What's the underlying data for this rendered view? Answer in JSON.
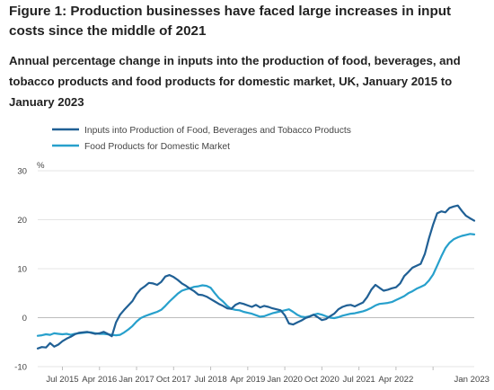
{
  "header": {
    "title": "Figure 1: Production businesses have faced large increases in input costs since the middle of 2021",
    "subtitle": "Annual percentage change in inputs into the production of food, beverages, and tobacco products and food products for domestic market, UK, January 2015 to January 2023"
  },
  "chart_data": {
    "type": "line",
    "title": "Figure 1: Production businesses have faced large increases in input costs since the middle of 2021",
    "subtitle": "Annual percentage change in inputs into the production of food, beverages, and tobacco products and food products for domestic market, UK, January 2015 to January 2023",
    "ylabel": "%",
    "xlabel": "",
    "ylim": [
      -10,
      30
    ],
    "yticks": [
      -10,
      0,
      10,
      20,
      30
    ],
    "xtick_labels": [
      "Jul 2015",
      "Apr 2016",
      "Jan 2017",
      "Oct 2017",
      "Jul 2018",
      "Apr 2019",
      "Jan 2020",
      "Oct 2020",
      "Jul 2021",
      "Apr 2022",
      "Jan 2023"
    ],
    "x_start": "Jan 2015",
    "x_end": "Jan 2023",
    "grid": "horizontal",
    "legend_position": "top-left",
    "series": [
      {
        "name": "Inputs into Production of Food, Beverages and Tobacco Products",
        "color": "#206095",
        "values": [
          -6.3,
          -6.0,
          -6.1,
          -5.2,
          -5.9,
          -5.5,
          -4.8,
          -4.3,
          -3.9,
          -3.4,
          -3.1,
          -3.0,
          -2.9,
          -3.1,
          -3.3,
          -3.2,
          -2.9,
          -3.3,
          -3.8,
          -1.0,
          0.6,
          1.6,
          2.5,
          3.4,
          4.8,
          5.8,
          6.4,
          7.1,
          7.0,
          6.7,
          7.3,
          8.4,
          8.7,
          8.3,
          7.7,
          7.0,
          6.5,
          5.9,
          5.4,
          4.7,
          4.6,
          4.3,
          3.8,
          3.3,
          2.8,
          2.4,
          1.9,
          1.8,
          2.6,
          3.0,
          2.8,
          2.5,
          2.2,
          2.6,
          2.1,
          2.4,
          2.2,
          1.9,
          1.7,
          1.5,
          0.5,
          -1.2,
          -1.4,
          -1.0,
          -0.6,
          -0.1,
          0.2,
          0.6,
          0.1,
          -0.5,
          -0.3,
          0.3,
          0.8,
          1.7,
          2.2,
          2.5,
          2.6,
          2.3,
          2.7,
          3.1,
          4.2,
          5.7,
          6.7,
          6.1,
          5.5,
          5.7,
          6.0,
          6.2,
          7.0,
          8.5,
          9.3,
          10.2,
          10.6,
          11.0,
          13.0,
          16.2,
          19.0,
          21.3,
          21.7,
          21.5,
          22.4,
          22.7,
          22.9,
          21.8,
          20.8,
          20.3,
          19.8
        ]
      },
      {
        "name": "Food Products for Domestic Market",
        "color": "#27a0cc",
        "values": [
          -3.7,
          -3.6,
          -3.4,
          -3.5,
          -3.2,
          -3.3,
          -3.4,
          -3.3,
          -3.5,
          -3.3,
          -3.2,
          -3.1,
          -3.0,
          -3.0,
          -3.2,
          -3.3,
          -3.3,
          -3.4,
          -3.5,
          -3.6,
          -3.5,
          -3.0,
          -2.4,
          -1.7,
          -0.8,
          -0.1,
          0.3,
          0.6,
          0.9,
          1.2,
          1.6,
          2.4,
          3.3,
          4.1,
          4.9,
          5.5,
          5.8,
          6.0,
          6.3,
          6.4,
          6.6,
          6.5,
          6.1,
          5.0,
          4.0,
          3.3,
          2.4,
          1.8,
          1.6,
          1.5,
          1.2,
          1.0,
          0.8,
          0.5,
          0.2,
          0.3,
          0.6,
          0.9,
          1.1,
          1.3,
          1.5,
          1.7,
          1.2,
          0.6,
          0.2,
          0.1,
          0.3,
          0.6,
          0.8,
          0.6,
          0.3,
          0.0,
          -0.1,
          0.1,
          0.4,
          0.6,
          0.8,
          0.9,
          1.1,
          1.3,
          1.6,
          2.0,
          2.5,
          2.8,
          2.9,
          3.0,
          3.2,
          3.6,
          4.0,
          4.4,
          5.0,
          5.4,
          5.9,
          6.3,
          6.7,
          7.6,
          8.8,
          10.6,
          12.5,
          14.2,
          15.3,
          16.0,
          16.4,
          16.7,
          16.9,
          17.1,
          17.0
        ]
      }
    ]
  }
}
